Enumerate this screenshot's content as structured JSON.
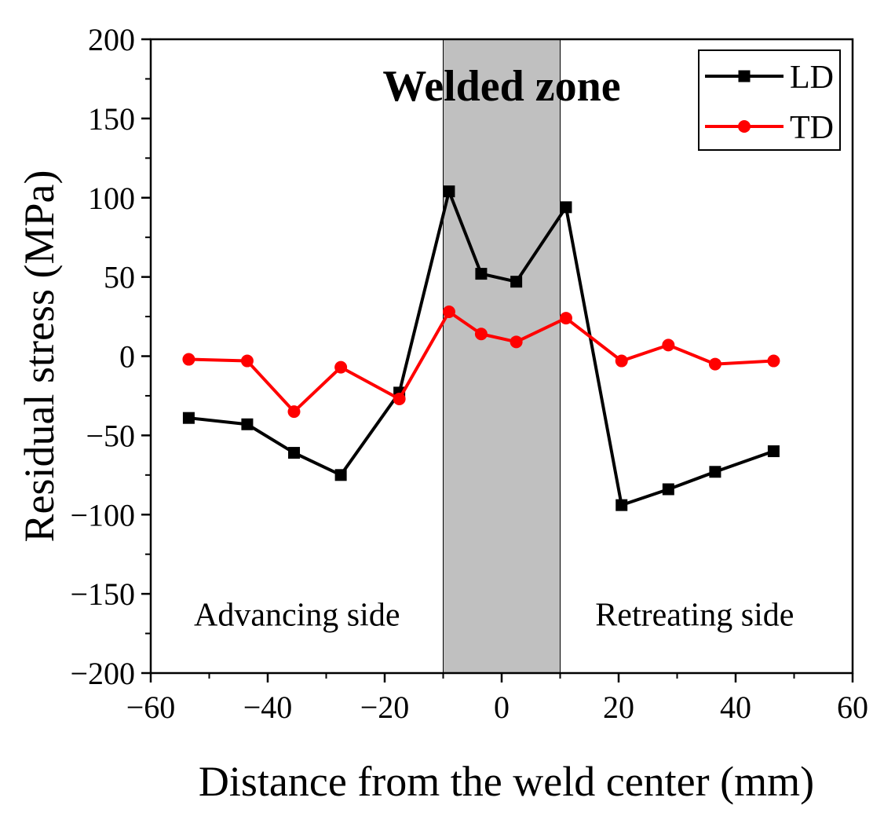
{
  "chart_data": {
    "type": "line",
    "title": "",
    "xlabel": "Distance from the weld center (mm)",
    "ylabel": "Residual stress (MPa)",
    "xlim": [
      -60,
      60
    ],
    "ylim": [
      -200,
      200
    ],
    "xticks": [
      -60,
      -40,
      -20,
      0,
      20,
      40,
      60
    ],
    "yticks": [
      -200,
      -150,
      -100,
      -50,
      0,
      50,
      100,
      150,
      200
    ],
    "xtick_labels": [
      "−60",
      "−40",
      "−20",
      "0",
      "20",
      "40",
      "60"
    ],
    "ytick_labels": [
      "−200",
      "−150",
      "−100",
      "−50",
      "0",
      "50",
      "100",
      "150",
      "200"
    ],
    "grid": false,
    "legend_position": "top-right",
    "shaded_region": {
      "x_start": -10,
      "x_end": 10,
      "color": "#c0c0c0",
      "label": "Welded zone"
    },
    "annotations": [
      {
        "text": "Advancing side",
        "x": -35,
        "y": -163
      },
      {
        "text": "Retreating side",
        "x": 33,
        "y": -163
      }
    ],
    "series": [
      {
        "name": "LD",
        "color": "#000000",
        "marker": "square",
        "x": [
          -53.5,
          -43.5,
          -35.5,
          -27.5,
          -17.5,
          -9,
          -3.5,
          2.5,
          11,
          20.5,
          28.5,
          36.5,
          46.5
        ],
        "y": [
          -39,
          -43,
          -61,
          -75,
          -23,
          104,
          52,
          47,
          94,
          -94,
          -84,
          -73,
          -60
        ]
      },
      {
        "name": "TD",
        "color": "#ff0000",
        "marker": "circle",
        "x": [
          -53.5,
          -43.5,
          -35.5,
          -27.5,
          -17.5,
          -9,
          -3.5,
          2.5,
          11,
          20.5,
          28.5,
          36.5,
          46.5
        ],
        "y": [
          -2,
          -3,
          -35,
          -7,
          -27,
          28,
          14,
          9,
          24,
          -3,
          7,
          -5,
          -3
        ]
      }
    ]
  }
}
